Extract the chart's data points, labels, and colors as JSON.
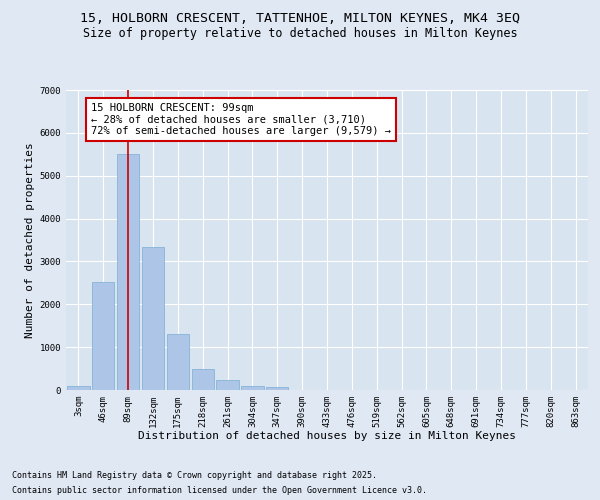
{
  "title_line1": "15, HOLBORN CRESCENT, TATTENHOE, MILTON KEYNES, MK4 3EQ",
  "title_line2": "Size of property relative to detached houses in Milton Keynes",
  "xlabel": "Distribution of detached houses by size in Milton Keynes",
  "ylabel": "Number of detached properties",
  "categories": [
    "3sqm",
    "46sqm",
    "89sqm",
    "132sqm",
    "175sqm",
    "218sqm",
    "261sqm",
    "304sqm",
    "347sqm",
    "390sqm",
    "433sqm",
    "476sqm",
    "519sqm",
    "562sqm",
    "605sqm",
    "648sqm",
    "691sqm",
    "734sqm",
    "777sqm",
    "820sqm",
    "863sqm"
  ],
  "values": [
    100,
    2520,
    5500,
    3330,
    1310,
    480,
    230,
    100,
    60,
    0,
    0,
    0,
    0,
    0,
    0,
    0,
    0,
    0,
    0,
    0,
    0
  ],
  "bar_color": "#adc6e8",
  "bar_edge_color": "#7aacd4",
  "vline_x_idx": 2,
  "vline_color": "#cc0000",
  "annotation_text": "15 HOLBORN CRESCENT: 99sqm\n← 28% of detached houses are smaller (3,710)\n72% of semi-detached houses are larger (9,579) →",
  "annotation_box_color": "#ffffff",
  "annotation_box_edge": "#cc0000",
  "ylim": [
    0,
    7000
  ],
  "yticks": [
    0,
    1000,
    2000,
    3000,
    4000,
    5000,
    6000,
    7000
  ],
  "bg_color": "#e0e8f4",
  "plot_bg_color": "#d8e4f0",
  "footer_line1": "Contains HM Land Registry data © Crown copyright and database right 2025.",
  "footer_line2": "Contains public sector information licensed under the Open Government Licence v3.0.",
  "title_fontsize": 9.5,
  "subtitle_fontsize": 8.5,
  "tick_fontsize": 6.5,
  "label_fontsize": 8,
  "annotation_fontsize": 7.5,
  "footer_fontsize": 6
}
